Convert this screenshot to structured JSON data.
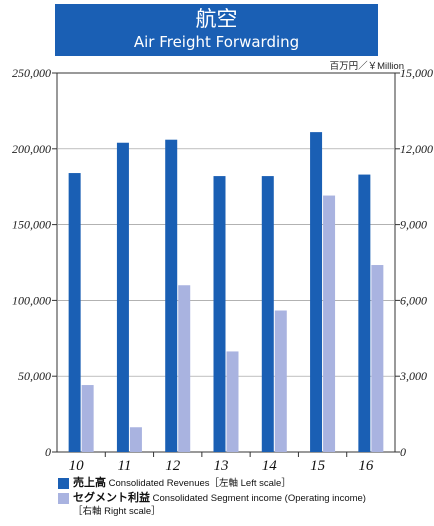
{
  "header": {
    "title": "航空",
    "subtitle": "Air Freight Forwarding"
  },
  "unit_label": "百万円／￥Million",
  "legend": {
    "items": [
      {
        "ja": "売上高",
        "en": " Consolidated Revenues［左軸 Left scale］",
        "color": "#1a5fb4"
      },
      {
        "ja": "セグメント利益",
        "en": " Consolidated Segment income (Operating income)",
        "en2": "［右軸 Right scale］",
        "color": "#a9b3e0"
      }
    ]
  },
  "chart_data": {
    "type": "bar",
    "categories": [
      "10",
      "11",
      "12",
      "13",
      "14",
      "15",
      "16"
    ],
    "series": [
      {
        "name": "売上高 Consolidated Revenues［左軸 Left scale］",
        "axis": "left",
        "values": [
          184000,
          204000,
          206000,
          182000,
          182000,
          211000,
          183000
        ],
        "color": "#1a5fb4"
      },
      {
        "name": "セグメント利益 Consolidated Segment income (Operating income)［右軸 Right scale］",
        "axis": "right",
        "values": [
          2650,
          980,
          6600,
          3980,
          5600,
          10150,
          7400
        ],
        "color": "#a9b3e0"
      }
    ],
    "left_axis": {
      "ylim": [
        0,
        250000
      ],
      "ticks": [
        "250,000",
        "200,000",
        "150,000",
        "100,000",
        "50,000",
        "0"
      ]
    },
    "right_axis": {
      "ylim": [
        0,
        15000
      ],
      "ticks": [
        "15,000",
        "12,000",
        "9,000",
        "6,000",
        "3,000",
        "0"
      ]
    },
    "grid": true
  }
}
